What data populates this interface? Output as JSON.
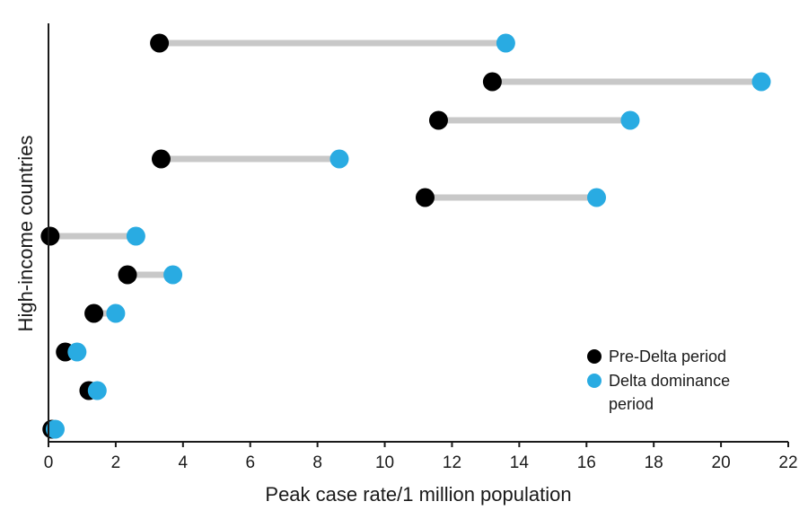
{
  "chart_data": {
    "type": "dumbbell",
    "xlabel": "Peak case rate/1 million population",
    "ylabel": "High-income countries",
    "xlim": [
      0,
      22
    ],
    "x_ticks": [
      0,
      2,
      4,
      6,
      8,
      10,
      12,
      14,
      16,
      18,
      20,
      22
    ],
    "grid": false,
    "legend_position": "bottom-right",
    "series": [
      {
        "name": "Pre-Delta period",
        "color": "#000000"
      },
      {
        "name": "Delta dominance period",
        "color": "#29abe2"
      }
    ],
    "connector_color": "#c8c8c8",
    "rows": [
      {
        "pre_delta": 3.3,
        "delta": 13.6
      },
      {
        "pre_delta": 13.2,
        "delta": 21.2
      },
      {
        "pre_delta": 11.6,
        "delta": 17.3
      },
      {
        "pre_delta": 3.35,
        "delta": 8.65
      },
      {
        "pre_delta": 11.2,
        "delta": 16.3
      },
      {
        "pre_delta": 0.05,
        "delta": 2.6
      },
      {
        "pre_delta": 2.35,
        "delta": 3.7
      },
      {
        "pre_delta": 1.35,
        "delta": 2.0
      },
      {
        "pre_delta": 0.5,
        "delta": 0.85
      },
      {
        "pre_delta": 1.2,
        "delta": 1.45
      },
      {
        "pre_delta": 0.1,
        "delta": 0.2
      }
    ]
  }
}
